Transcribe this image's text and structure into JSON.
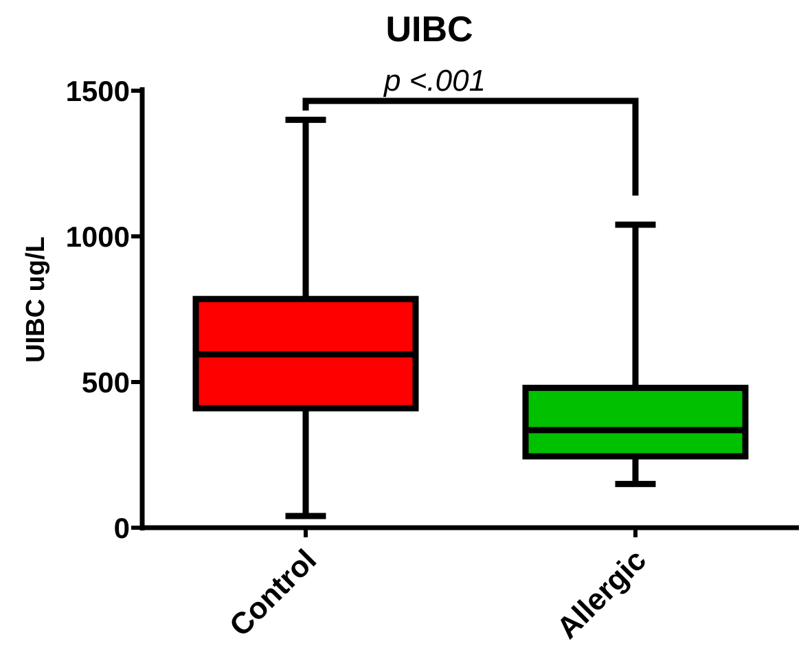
{
  "chart_data": {
    "type": "box",
    "title": "UIBC",
    "xlabel": "",
    "ylabel": "UIBC ug/L",
    "ylim": [
      0,
      1500
    ],
    "yticks": [
      0,
      500,
      1000,
      1500
    ],
    "grid": false,
    "legend": "none",
    "categories": [
      "Control",
      "Allergic"
    ],
    "boxes": [
      {
        "category": "Control",
        "min": 40,
        "q1": 410,
        "median": 595,
        "q3": 785,
        "max": 1400,
        "color": "#ff0000"
      },
      {
        "category": "Allergic",
        "min": 150,
        "q1": 245,
        "median": 335,
        "q3": 480,
        "max": 1040,
        "color": "#00c000"
      }
    ],
    "annotation": {
      "text": "p <.001",
      "between": [
        "Control",
        "Allergic"
      ],
      "level": 1465,
      "right_drop_to": 1140
    }
  }
}
